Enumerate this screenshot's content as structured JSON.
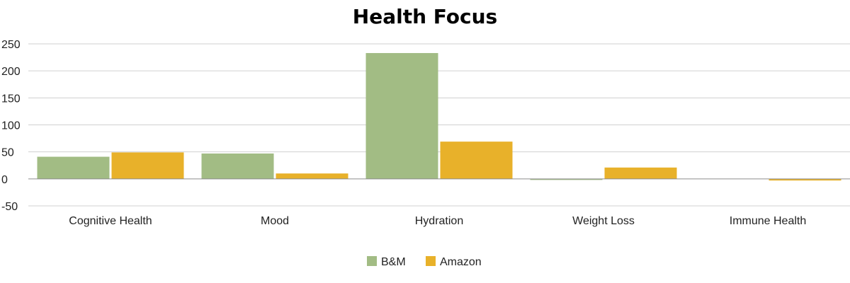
{
  "chart_data": {
    "type": "bar",
    "title": "Health Focus",
    "categories": [
      "Cognitive Health",
      "Mood",
      "Hydration",
      "Weight Loss",
      "Immune Health"
    ],
    "series": [
      {
        "name": "B&M",
        "color": "#a2bc84",
        "values": [
          41,
          47,
          233,
          -2,
          0
        ]
      },
      {
        "name": "Amazon",
        "color": "#e8b12a",
        "values": [
          49,
          10,
          69,
          21,
          -3
        ]
      }
    ],
    "ylim": [
      -50,
      250
    ],
    "yticks": [
      -50,
      0,
      50,
      100,
      150,
      200,
      250
    ],
    "grid": true,
    "legend_position": "bottom"
  }
}
